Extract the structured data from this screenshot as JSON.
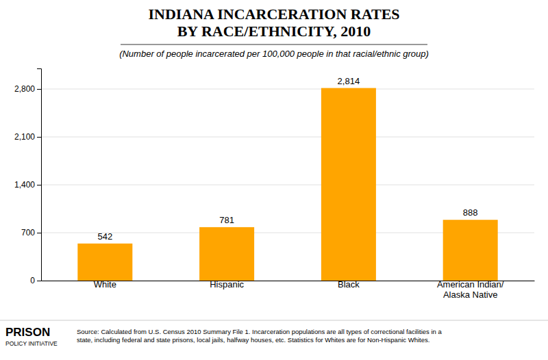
{
  "chart_data": {
    "type": "bar",
    "title": "INDIANA INCARCERATION RATES\nBY RACE/ETHNICITY, 2010",
    "subtitle": "(Number of people incarcerated per 100,000 people in that racial/ethnic group)",
    "categories": [
      "White",
      "Hispanic",
      "Black",
      "American Indian/\nAlaska Native"
    ],
    "values": [
      542,
      781,
      2814,
      888
    ],
    "value_labels": [
      "542",
      "781",
      "2,814",
      "888"
    ],
    "data_labels": true,
    "color": "#FFA500",
    "ylim": [
      0,
      3100
    ],
    "yticks": [
      0,
      700,
      {
        "value": 1400,
        "label": "1,400"
      },
      {
        "value": 2100,
        "label": "2,100"
      },
      {
        "value": 2800,
        "label": "2,800"
      }
    ],
    "grid": true,
    "annotations": [
      "PRISON",
      "POLICY INITIATIVE",
      "Source: Calculated from U.S. Census 2010 Summary File 1. Incarceration populations are all types of correctional facilities in a\nstate, including federal and state prisons, local jails, halfway houses, etc. Statistics for Whites are for Non-Hispanic Whites."
    ]
  }
}
